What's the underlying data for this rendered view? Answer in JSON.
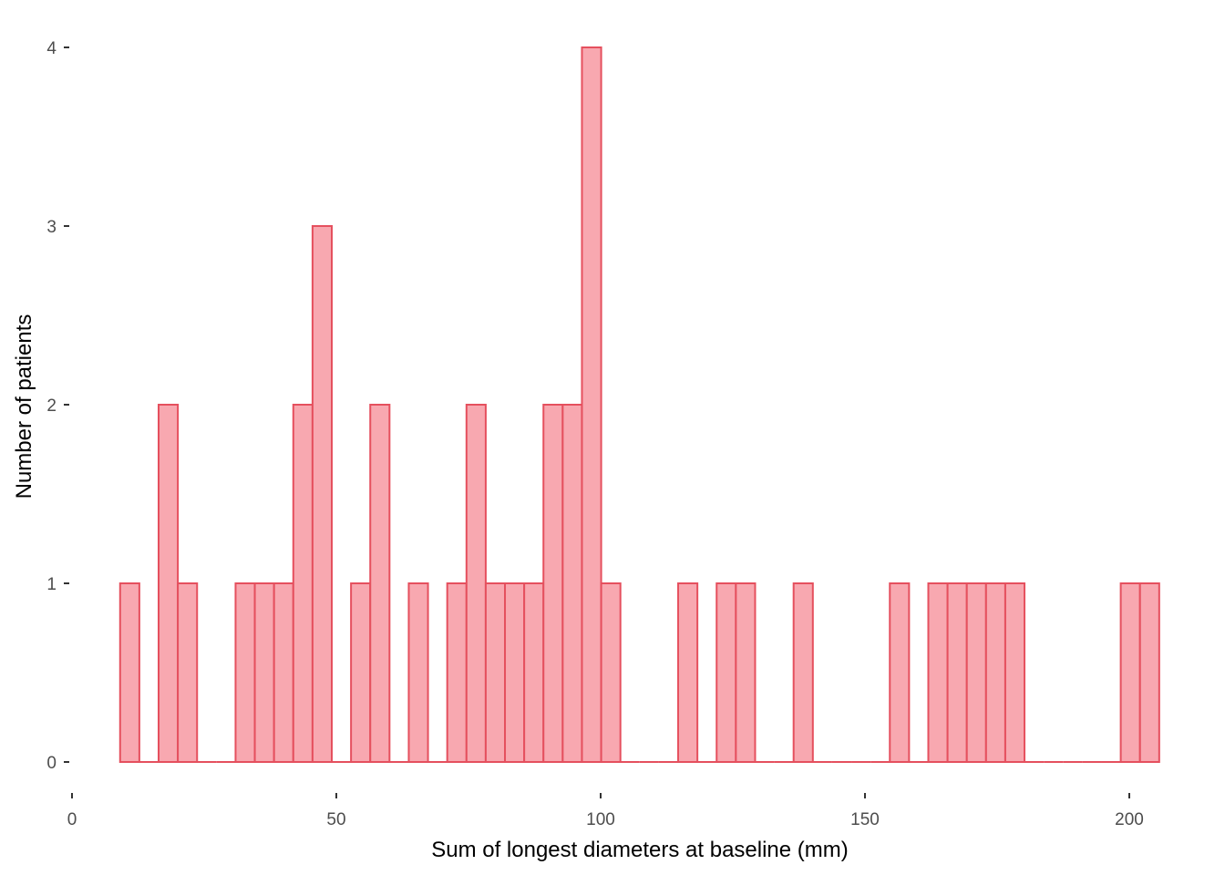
{
  "chart_data": {
    "type": "bar",
    "chart_subtype": "histogram",
    "xlabel": "Sum of longest diameters at baseline (mm)",
    "ylabel": "Number of patients",
    "xlim": [
      0,
      205.6
    ],
    "ylim": [
      0,
      4
    ],
    "x_ticks": [
      0,
      50,
      100,
      150,
      200
    ],
    "y_ticks": [
      0,
      1,
      2,
      3,
      4
    ],
    "bin_start": 9.1,
    "bin_width": 3.64,
    "counts": [
      1,
      0,
      2,
      1,
      0,
      0,
      1,
      1,
      1,
      2,
      3,
      0,
      1,
      2,
      0,
      1,
      0,
      1,
      2,
      1,
      1,
      1,
      2,
      2,
      4,
      1,
      0,
      0,
      0,
      1,
      0,
      1,
      1,
      0,
      0,
      1,
      0,
      0,
      0,
      0,
      1,
      0,
      1,
      1,
      1,
      1,
      1,
      0,
      0,
      0,
      0,
      0,
      1,
      1
    ],
    "fill_color": "#f8a8b0",
    "stroke_color": "#e5505e",
    "grid": false,
    "legend": "none"
  }
}
